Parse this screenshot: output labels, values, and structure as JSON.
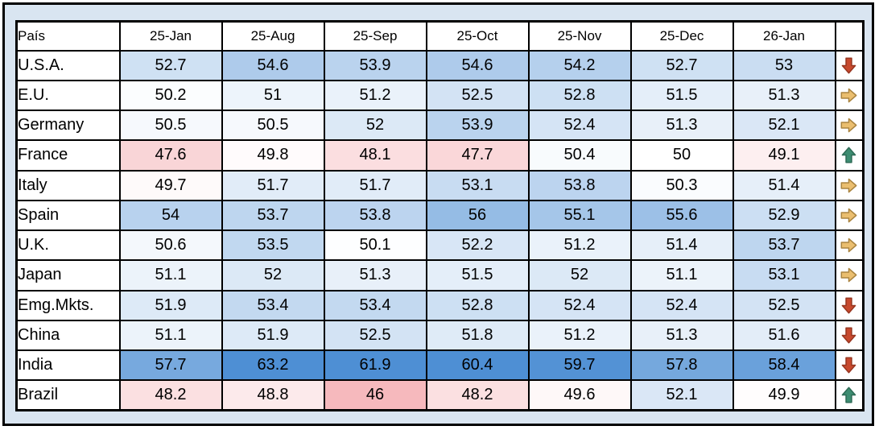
{
  "chart_data": {
    "type": "heatmap",
    "row_label_header": "País",
    "columns": [
      "25-Jan",
      "25-Aug",
      "25-Sep",
      "25-Oct",
      "25-Nov",
      "25-Dec",
      "26-Jan"
    ],
    "rows": [
      {
        "name": "U.S.A.",
        "values": [
          52.7,
          54.6,
          53.9,
          54.6,
          54.2,
          52.7,
          53
        ],
        "trend": "down"
      },
      {
        "name": "E.U.",
        "values": [
          50.2,
          51,
          51.2,
          52.5,
          52.8,
          51.5,
          51.3
        ],
        "trend": "flat"
      },
      {
        "name": "Germany",
        "values": [
          50.5,
          50.5,
          52,
          53.9,
          52.4,
          51.3,
          52.1
        ],
        "trend": "flat"
      },
      {
        "name": "France",
        "values": [
          47.6,
          49.8,
          48.1,
          47.7,
          50.4,
          50,
          49.1
        ],
        "trend": "up"
      },
      {
        "name": "Italy",
        "values": [
          49.7,
          51.7,
          51.7,
          53.1,
          53.8,
          50.3,
          51.4
        ],
        "trend": "flat"
      },
      {
        "name": "Spain",
        "values": [
          54,
          53.7,
          53.8,
          56,
          55.1,
          55.6,
          52.9
        ],
        "trend": "flat"
      },
      {
        "name": "U.K.",
        "values": [
          50.6,
          53.5,
          50.1,
          52.2,
          51.2,
          51.4,
          53.7
        ],
        "trend": "flat"
      },
      {
        "name": "Japan",
        "values": [
          51.1,
          52,
          51.3,
          51.5,
          52,
          51.1,
          53.1
        ],
        "trend": "flat"
      },
      {
        "name": "Emg.Mkts.",
        "values": [
          51.9,
          53.4,
          53.4,
          52.8,
          52.4,
          52.4,
          52.5
        ],
        "trend": "down"
      },
      {
        "name": "China",
        "values": [
          51.1,
          51.9,
          52.5,
          51.8,
          51.2,
          51.3,
          51.6
        ],
        "trend": "down"
      },
      {
        "name": "India",
        "values": [
          57.7,
          63.2,
          61.9,
          60.4,
          59.7,
          57.8,
          58.4
        ],
        "trend": "down"
      },
      {
        "name": "Brazil",
        "values": [
          48.2,
          48.8,
          46,
          48.2,
          49.6,
          52.1,
          49.9
        ],
        "trend": "up"
      }
    ],
    "color_scale": {
      "mid_value": 50,
      "saturate_span": 10,
      "high_color": "#4E8FD4",
      "mid_color": "#FFFFFF",
      "low_color": "#E8505A"
    },
    "legend": "none",
    "grid": "black cell borders"
  },
  "trend_icons": {
    "down": {
      "icon": "down-arrow-icon",
      "fill": "#C7492E",
      "stroke": "#97351F"
    },
    "flat": {
      "icon": "right-arrow-icon",
      "fill": "#EABE6F",
      "stroke": "#AA8440"
    },
    "up": {
      "icon": "up-arrow-icon",
      "fill": "#3E8D72",
      "stroke": "#2E6B56"
    }
  },
  "frame": {
    "background_color": "#D9E5F1",
    "border_color": "#000000"
  }
}
